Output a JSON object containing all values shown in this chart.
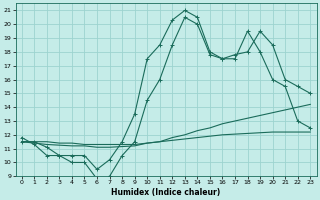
{
  "xlabel": "Humidex (Indice chaleur)",
  "xlim": [
    -0.5,
    23.5
  ],
  "ylim": [
    9,
    21.5
  ],
  "xticks": [
    0,
    1,
    2,
    3,
    4,
    5,
    6,
    7,
    8,
    9,
    10,
    11,
    12,
    13,
    14,
    15,
    16,
    17,
    18,
    19,
    20,
    21,
    22,
    23
  ],
  "yticks": [
    9,
    10,
    11,
    12,
    13,
    14,
    15,
    16,
    17,
    18,
    19,
    20,
    21
  ],
  "bg_color": "#c5ece8",
  "grid_color": "#9dd4cf",
  "line_color": "#1a6b5a",
  "s1_x": [
    0,
    1,
    2,
    3,
    4,
    5,
    6,
    7,
    8,
    9,
    10,
    11,
    12,
    13,
    14,
    15,
    16,
    17,
    18,
    19,
    20,
    21,
    22,
    23
  ],
  "s1_y": [
    11.5,
    11.5,
    11.1,
    10.5,
    10.5,
    10.5,
    9.5,
    10.2,
    11.5,
    13.5,
    17.5,
    18.5,
    20.3,
    21.0,
    20.5,
    18.0,
    17.5,
    17.5,
    19.5,
    18.0,
    16.0,
    15.5,
    13.0,
    12.5
  ],
  "s2_x": [
    0,
    1,
    2,
    3,
    4,
    5,
    6,
    7,
    8,
    9,
    10,
    11,
    12,
    13,
    14,
    15,
    16,
    17,
    18,
    19,
    20,
    21,
    22,
    23
  ],
  "s2_y": [
    11.8,
    11.3,
    10.5,
    10.5,
    10.0,
    10.0,
    8.8,
    9.0,
    10.5,
    11.5,
    14.5,
    16.0,
    18.5,
    20.5,
    20.0,
    17.8,
    17.5,
    17.8,
    18.0,
    19.5,
    18.5,
    16.0,
    15.5,
    15.0
  ],
  "s3_x": [
    0,
    1,
    2,
    3,
    4,
    5,
    6,
    7,
    8,
    9,
    10,
    11,
    12,
    13,
    14,
    15,
    16,
    17,
    18,
    19,
    20,
    21,
    22,
    23
  ],
  "s3_y": [
    11.5,
    11.4,
    11.3,
    11.25,
    11.2,
    11.2,
    11.1,
    11.1,
    11.15,
    11.2,
    11.4,
    11.5,
    11.8,
    12.0,
    12.3,
    12.5,
    12.8,
    13.0,
    13.2,
    13.4,
    13.6,
    13.8,
    14.0,
    14.2
  ],
  "s4_x": [
    0,
    1,
    2,
    3,
    4,
    5,
    6,
    7,
    8,
    9,
    10,
    11,
    12,
    13,
    14,
    15,
    16,
    17,
    18,
    19,
    20,
    21,
    22,
    23
  ],
  "s4_y": [
    11.5,
    11.5,
    11.5,
    11.4,
    11.4,
    11.3,
    11.3,
    11.3,
    11.3,
    11.3,
    11.4,
    11.5,
    11.6,
    11.7,
    11.8,
    11.9,
    12.0,
    12.05,
    12.1,
    12.15,
    12.2,
    12.2,
    12.2,
    12.2
  ]
}
